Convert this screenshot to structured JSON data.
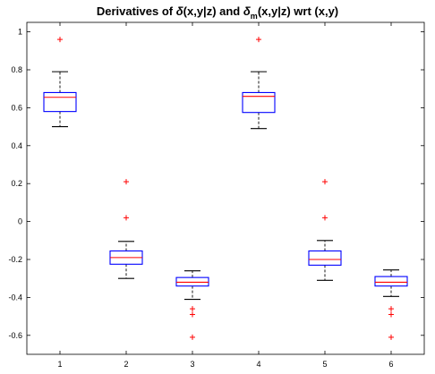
{
  "chart_data": {
    "type": "box",
    "title": {
      "prefix": "Derivatives of ",
      "sym1": "δ",
      "mid1": "(x,y|z) and ",
      "sym2": "δ",
      "subscript": "m",
      "mid2": "(x,y|z) wrt (x,y)"
    },
    "xlabel": "",
    "ylabel": "",
    "categories": [
      "1",
      "2",
      "3",
      "4",
      "5",
      "6"
    ],
    "ylim": [
      -0.7,
      1.05
    ],
    "yticks": [
      -0.6,
      -0.4,
      -0.2,
      0,
      0.2,
      0.4,
      0.6,
      0.8,
      1
    ],
    "ytick_labels": [
      "-0.6",
      "-0.4",
      "-0.2",
      "0",
      "0.2",
      "0.4",
      "0.6",
      "0.8",
      "1"
    ],
    "boxes": [
      {
        "category": "1",
        "whisker_low": 0.5,
        "q1": 0.58,
        "median": 0.655,
        "q3": 0.68,
        "whisker_high": 0.79,
        "outliers": [
          0.96
        ]
      },
      {
        "category": "2",
        "whisker_low": -0.3,
        "q1": -0.225,
        "median": -0.19,
        "q3": -0.155,
        "whisker_high": -0.105,
        "outliers": [
          0.21,
          0.02
        ]
      },
      {
        "category": "3",
        "whisker_low": -0.41,
        "q1": -0.34,
        "median": -0.32,
        "q3": -0.295,
        "whisker_high": -0.26,
        "outliers": [
          -0.46,
          -0.49,
          -0.61
        ]
      },
      {
        "category": "4",
        "whisker_low": 0.49,
        "q1": 0.575,
        "median": 0.66,
        "q3": 0.68,
        "whisker_high": 0.79,
        "outliers": [
          0.96
        ]
      },
      {
        "category": "5",
        "whisker_low": -0.31,
        "q1": -0.23,
        "median": -0.2,
        "q3": -0.155,
        "whisker_high": -0.1,
        "outliers": [
          0.21,
          0.02
        ]
      },
      {
        "category": "6",
        "whisker_low": -0.395,
        "q1": -0.34,
        "median": -0.32,
        "q3": -0.29,
        "whisker_high": -0.255,
        "outliers": [
          -0.46,
          -0.49,
          -0.61
        ]
      }
    ],
    "colors": {
      "box": "#0000ff",
      "median": "#ff0000",
      "whisker": "#000000",
      "outlier": "#ff0000",
      "axes": "#000000"
    },
    "grid": false,
    "legend": "none"
  }
}
